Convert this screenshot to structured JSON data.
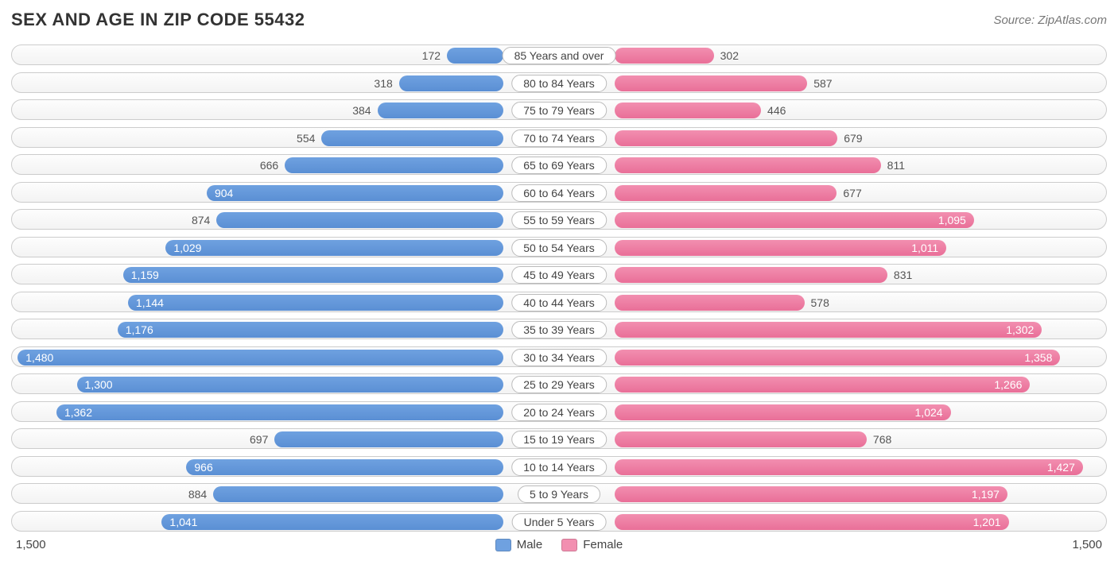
{
  "header": {
    "title": "SEX AND AGE IN ZIP CODE 55432",
    "source": "Source: ZipAtlas.com"
  },
  "chart": {
    "type": "population-pyramid",
    "male_color": "#6fa1e0",
    "male_color_dark": "#5a8fd4",
    "female_color": "#f28fb0",
    "female_color_dark": "#e96f98",
    "max_value": 1500,
    "value_inside_threshold": 900,
    "rows": [
      {
        "label": "85 Years and over",
        "male": 172,
        "female": 302,
        "male_display": "172",
        "female_display": "302"
      },
      {
        "label": "80 to 84 Years",
        "male": 318,
        "female": 587,
        "male_display": "318",
        "female_display": "587"
      },
      {
        "label": "75 to 79 Years",
        "male": 384,
        "female": 446,
        "male_display": "384",
        "female_display": "446"
      },
      {
        "label": "70 to 74 Years",
        "male": 554,
        "female": 679,
        "male_display": "554",
        "female_display": "679"
      },
      {
        "label": "65 to 69 Years",
        "male": 666,
        "female": 811,
        "male_display": "666",
        "female_display": "811"
      },
      {
        "label": "60 to 64 Years",
        "male": 904,
        "female": 677,
        "male_display": "904",
        "female_display": "677"
      },
      {
        "label": "55 to 59 Years",
        "male": 874,
        "female": 1095,
        "male_display": "874",
        "female_display": "1,095"
      },
      {
        "label": "50 to 54 Years",
        "male": 1029,
        "female": 1011,
        "male_display": "1,029",
        "female_display": "1,011"
      },
      {
        "label": "45 to 49 Years",
        "male": 1159,
        "female": 831,
        "male_display": "1,159",
        "female_display": "831"
      },
      {
        "label": "40 to 44 Years",
        "male": 1144,
        "female": 578,
        "male_display": "1,144",
        "female_display": "578"
      },
      {
        "label": "35 to 39 Years",
        "male": 1176,
        "female": 1302,
        "male_display": "1,176",
        "female_display": "1,302"
      },
      {
        "label": "30 to 34 Years",
        "male": 1480,
        "female": 1358,
        "male_display": "1,480",
        "female_display": "1,358"
      },
      {
        "label": "25 to 29 Years",
        "male": 1300,
        "female": 1266,
        "male_display": "1,300",
        "female_display": "1,266"
      },
      {
        "label": "20 to 24 Years",
        "male": 1362,
        "female": 1024,
        "male_display": "1,362",
        "female_display": "1,024"
      },
      {
        "label": "15 to 19 Years",
        "male": 697,
        "female": 768,
        "male_display": "697",
        "female_display": "768"
      },
      {
        "label": "10 to 14 Years",
        "male": 966,
        "female": 1427,
        "male_display": "966",
        "female_display": "1,427"
      },
      {
        "label": "5 to 9 Years",
        "male": 884,
        "female": 1197,
        "male_display": "884",
        "female_display": "1,197"
      },
      {
        "label": "Under 5 Years",
        "male": 1041,
        "female": 1201,
        "male_display": "1,041",
        "female_display": "1,201"
      }
    ]
  },
  "footer": {
    "axis_left": "1,500",
    "axis_right": "1,500",
    "legend_male": "Male",
    "legend_female": "Female"
  }
}
